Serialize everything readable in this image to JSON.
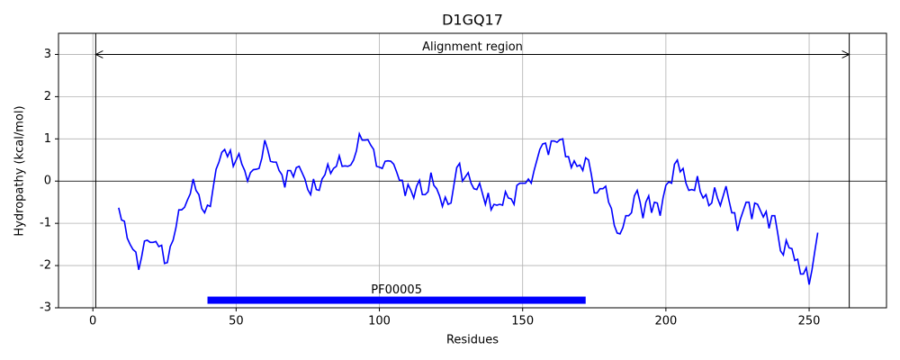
{
  "chart_data": {
    "type": "line",
    "title": "D1GQ17",
    "xlabel": "Residues",
    "ylabel": "Hydropathy (kcal/mol)",
    "x": [
      9,
      10,
      11,
      12,
      13,
      14,
      15,
      16,
      17,
      18,
      19,
      20,
      21,
      22,
      23,
      24,
      25,
      26,
      27,
      28,
      29,
      30,
      31,
      32,
      33,
      34,
      35,
      36,
      37,
      38,
      39,
      40,
      41,
      42,
      43,
      44,
      45,
      46,
      47,
      48,
      49,
      50,
      51,
      52,
      53,
      54,
      55,
      56,
      57,
      58,
      59,
      60,
      61,
      62,
      63,
      64,
      65,
      66,
      67,
      68,
      69,
      70,
      71,
      72,
      73,
      74,
      75,
      76,
      77,
      78,
      79,
      80,
      81,
      82,
      83,
      84,
      85,
      86,
      87,
      88,
      89,
      90,
      91,
      92,
      93,
      94,
      95,
      96,
      97,
      98,
      99,
      100,
      101,
      102,
      103,
      104,
      105,
      106,
      107,
      108,
      109,
      110,
      111,
      112,
      113,
      114,
      115,
      116,
      117,
      118,
      119,
      120,
      121,
      122,
      123,
      124,
      125,
      126,
      127,
      128,
      129,
      130,
      131,
      132,
      133,
      134,
      135,
      136,
      137,
      138,
      139,
      140,
      141,
      142,
      143,
      144,
      145,
      146,
      147,
      148,
      149,
      150,
      151,
      152,
      153,
      154,
      155,
      156,
      157,
      158,
      159,
      160,
      161,
      162,
      163,
      164,
      165,
      166,
      167,
      168,
      169,
      170,
      171,
      172,
      173,
      174,
      175,
      176,
      177,
      178,
      179,
      180,
      181,
      182,
      183,
      184,
      185,
      186,
      187,
      188,
      189,
      190,
      191,
      192,
      193,
      194,
      195,
      196,
      197,
      198,
      199,
      200,
      201,
      202,
      203,
      204,
      205,
      206,
      207,
      208,
      209,
      210,
      211,
      212,
      213,
      214,
      215,
      216,
      217,
      218,
      219,
      220,
      221,
      222,
      223,
      224,
      225,
      226,
      227,
      228,
      229,
      230,
      231,
      232,
      233,
      234,
      235,
      236,
      237,
      238,
      239,
      240,
      241,
      242,
      243,
      244,
      245,
      246,
      247,
      248,
      249,
      250,
      251,
      252,
      253
    ],
    "values": [
      -0.63,
      -0.92,
      -0.95,
      -1.35,
      -1.5,
      -1.62,
      -1.68,
      -2.1,
      -1.8,
      -1.42,
      -1.4,
      -1.45,
      -1.45,
      -1.43,
      -1.55,
      -1.52,
      -1.95,
      -1.93,
      -1.55,
      -1.4,
      -1.1,
      -0.68,
      -0.68,
      -0.62,
      -0.45,
      -0.3,
      0.05,
      -0.22,
      -0.32,
      -0.65,
      -0.75,
      -0.57,
      -0.6,
      -0.15,
      0.28,
      0.45,
      0.68,
      0.75,
      0.58,
      0.73,
      0.35,
      0.5,
      0.65,
      0.4,
      0.25,
      0.0,
      0.2,
      0.27,
      0.28,
      0.3,
      0.55,
      0.97,
      0.75,
      0.47,
      0.45,
      0.45,
      0.25,
      0.15,
      -0.15,
      0.25,
      0.25,
      0.1,
      0.32,
      0.35,
      0.2,
      0.05,
      -0.2,
      -0.32,
      0.05,
      -0.2,
      -0.22,
      0.05,
      0.15,
      0.4,
      0.18,
      0.3,
      0.35,
      0.6,
      0.35,
      0.36,
      0.35,
      0.38,
      0.5,
      0.72,
      1.12,
      0.97,
      0.97,
      0.98,
      0.85,
      0.75,
      0.35,
      0.33,
      0.3,
      0.47,
      0.48,
      0.47,
      0.4,
      0.22,
      0.02,
      0.02,
      -0.35,
      -0.08,
      -0.22,
      -0.4,
      -0.12,
      0.02,
      -0.32,
      -0.32,
      -0.25,
      0.2,
      -0.1,
      -0.18,
      -0.35,
      -0.6,
      -0.38,
      -0.55,
      -0.52,
      -0.1,
      0.32,
      0.42,
      0.0,
      0.1,
      0.2,
      -0.05,
      -0.18,
      -0.2,
      -0.05,
      -0.3,
      -0.55,
      -0.28,
      -0.68,
      -0.55,
      -0.57,
      -0.55,
      -0.57,
      -0.25,
      -0.4,
      -0.42,
      -0.55,
      -0.1,
      -0.05,
      -0.05,
      -0.05,
      0.05,
      -0.05,
      0.25,
      0.5,
      0.75,
      0.88,
      0.9,
      0.62,
      0.95,
      0.95,
      0.92,
      0.98,
      1.0,
      0.58,
      0.58,
      0.32,
      0.48,
      0.35,
      0.38,
      0.25,
      0.55,
      0.5,
      0.15,
      -0.28,
      -0.28,
      -0.18,
      -0.18,
      -0.12,
      -0.5,
      -0.65,
      -1.05,
      -1.23,
      -1.25,
      -1.1,
      -0.82,
      -0.82,
      -0.75,
      -0.35,
      -0.22,
      -0.5,
      -0.88,
      -0.5,
      -0.35,
      -0.75,
      -0.5,
      -0.52,
      -0.82,
      -0.4,
      -0.1,
      -0.02,
      -0.05,
      0.4,
      0.5,
      0.22,
      0.3,
      -0.05,
      -0.22,
      -0.2,
      -0.22,
      0.12,
      -0.25,
      -0.4,
      -0.32,
      -0.58,
      -0.52,
      -0.15,
      -0.4,
      -0.58,
      -0.35,
      -0.12,
      -0.45,
      -0.75,
      -0.75,
      -1.18,
      -0.9,
      -0.7,
      -0.5,
      -0.5,
      -0.9,
      -0.52,
      -0.55,
      -0.7,
      -0.85,
      -0.72,
      -1.12,
      -0.82,
      -0.82,
      -1.22,
      -1.65,
      -1.75,
      -1.4,
      -1.58,
      -1.6,
      -1.88,
      -1.85,
      -2.2,
      -2.2,
      -2.05,
      -2.45,
      -2.1,
      -1.65,
      -1.22
    ],
    "color": "#0000ff",
    "xlim": [
      -12,
      277
    ],
    "ylim": [
      -3,
      3.5
    ],
    "xticks": [
      0,
      50,
      100,
      150,
      200,
      250
    ],
    "yticks": [
      -3,
      -2,
      -1,
      0,
      1,
      2,
      3
    ],
    "grid": true,
    "hline": 0,
    "alignment": {
      "label": "Alignment region",
      "start": 1,
      "end": 264,
      "y": 3
    },
    "domain": {
      "name": "PF00005",
      "start": 40,
      "end": 172,
      "y": -2.82,
      "color": "#0000ff"
    }
  }
}
